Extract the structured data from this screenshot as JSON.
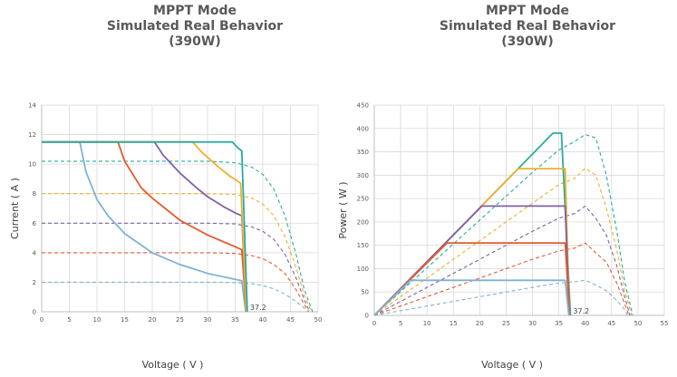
{
  "chart_data": [
    {
      "type": "line",
      "title": [
        "MPPT Mode",
        "Simulated Real Behavior",
        "(390W)"
      ],
      "xlabel": "Voltage ( V )",
      "ylabel": "Current ( A )",
      "xlim": [
        0,
        50
      ],
      "ylim": [
        0,
        14
      ],
      "xticks": [
        "0",
        "5",
        "10",
        "15",
        "20",
        "25",
        "30",
        "35",
        "40",
        "45",
        "50"
      ],
      "yticks": [
        "0",
        "2",
        "4",
        "6",
        "8",
        "10",
        "12",
        "14"
      ],
      "annotation": {
        "text": "37.2",
        "x": 37.2,
        "y": 0
      },
      "grid": true,
      "series": [
        {
          "style": "solid",
          "color": "#7fb2d3",
          "points": [
            [
              0,
              11.5
            ],
            [
              6.9,
              11.5
            ],
            [
              8,
              9.5
            ],
            [
              10,
              7.6
            ],
            [
              12,
              6.5
            ],
            [
              15,
              5.3
            ],
            [
              20,
              4.0
            ],
            [
              25,
              3.2
            ],
            [
              30,
              2.6
            ],
            [
              35,
              2.2
            ],
            [
              36.2,
              2.1
            ],
            [
              36.9,
              0
            ]
          ]
        },
        {
          "style": "solid",
          "color": "#e35b2f",
          "points": [
            [
              0,
              11.5
            ],
            [
              13.8,
              11.5
            ],
            [
              15,
              10.2
            ],
            [
              18,
              8.4
            ],
            [
              20,
              7.7
            ],
            [
              25,
              6.2
            ],
            [
              30,
              5.2
            ],
            [
              35,
              4.4
            ],
            [
              36.2,
              4.2
            ],
            [
              37,
              0
            ]
          ]
        },
        {
          "style": "solid",
          "color": "#8060a8",
          "points": [
            [
              0,
              11.5
            ],
            [
              20.4,
              11.5
            ],
            [
              22,
              10.6
            ],
            [
              25,
              9.4
            ],
            [
              28,
              8.4
            ],
            [
              30,
              7.8
            ],
            [
              33,
              7.1
            ],
            [
              35,
              6.7
            ],
            [
              36.2,
              6.5
            ],
            [
              37,
              0
            ]
          ]
        },
        {
          "style": "solid",
          "color": "#efb02c",
          "points": [
            [
              0,
              11.5
            ],
            [
              27.3,
              11.5
            ],
            [
              29,
              10.8
            ],
            [
              32,
              9.8
            ],
            [
              34,
              9.2
            ],
            [
              36,
              8.7
            ],
            [
              37,
              0
            ]
          ]
        },
        {
          "style": "solid",
          "color": "#2aab9e",
          "points": [
            [
              0,
              11.5
            ],
            [
              34.5,
              11.5
            ],
            [
              35.5,
              11.1
            ],
            [
              36.2,
              10.9
            ],
            [
              37.2,
              0
            ]
          ]
        },
        {
          "style": "dashed",
          "color": "#7fb2d3",
          "points": [
            [
              0,
              2
            ],
            [
              30,
              2
            ],
            [
              35,
              1.98
            ],
            [
              38,
              1.9
            ],
            [
              40,
              1.78
            ],
            [
              42,
              1.55
            ],
            [
              44,
              1.2
            ],
            [
              46,
              0.7
            ],
            [
              47.5,
              0.25
            ],
            [
              48,
              0
            ]
          ]
        },
        {
          "style": "dashed",
          "color": "#e35b2f",
          "points": [
            [
              0,
              4
            ],
            [
              30,
              4
            ],
            [
              35,
              3.95
            ],
            [
              38,
              3.8
            ],
            [
              40,
              3.6
            ],
            [
              42,
              3.2
            ],
            [
              44,
              2.6
            ],
            [
              46,
              1.5
            ],
            [
              47.5,
              0.5
            ],
            [
              48.3,
              0
            ]
          ]
        },
        {
          "style": "dashed",
          "color": "#8060a8",
          "points": [
            [
              0,
              6
            ],
            [
              30,
              6
            ],
            [
              35,
              5.95
            ],
            [
              38,
              5.75
            ],
            [
              40,
              5.45
            ],
            [
              42,
              4.9
            ],
            [
              44,
              3.9
            ],
            [
              46,
              2.3
            ],
            [
              47.5,
              0.8
            ],
            [
              48.5,
              0
            ]
          ]
        },
        {
          "style": "dashed",
          "color": "#efb02c",
          "points": [
            [
              0,
              8
            ],
            [
              30,
              8
            ],
            [
              35,
              7.95
            ],
            [
              38,
              7.7
            ],
            [
              40,
              7.3
            ],
            [
              42,
              6.5
            ],
            [
              44,
              5.1
            ],
            [
              46,
              3.0
            ],
            [
              47.5,
              1.1
            ],
            [
              48.8,
              0
            ]
          ]
        },
        {
          "style": "dashed",
          "color": "#2aab9e",
          "points": [
            [
              0,
              10.2
            ],
            [
              30,
              10.2
            ],
            [
              35,
              10.1
            ],
            [
              38,
              9.8
            ],
            [
              40,
              9.3
            ],
            [
              42,
              8.3
            ],
            [
              44,
              6.5
            ],
            [
              46,
              3.9
            ],
            [
              47.5,
              1.5
            ],
            [
              49,
              0
            ]
          ]
        }
      ]
    },
    {
      "type": "line",
      "title": [
        "MPPT Mode",
        "Simulated Real Behavior",
        "(390W)"
      ],
      "xlabel": "Voltage ( V )",
      "ylabel": "Power ( W )",
      "xlim": [
        0,
        55
      ],
      "ylim": [
        0,
        450
      ],
      "xticks": [
        "0",
        "5",
        "10",
        "15",
        "20",
        "25",
        "30",
        "35",
        "40",
        "45",
        "50",
        "55"
      ],
      "yticks": [
        "0",
        "50",
        "100",
        "150",
        "200",
        "250",
        "300",
        "350",
        "400",
        "450"
      ],
      "annotation": {
        "text": "37.2",
        "x": 37.2,
        "y": 0
      },
      "grid": true,
      "series": [
        {
          "style": "solid",
          "color": "#2aab9e",
          "points": [
            [
              0,
              0
            ],
            [
              33.9,
              390
            ],
            [
              35.5,
              390
            ],
            [
              37.2,
              0
            ]
          ]
        },
        {
          "style": "solid",
          "color": "#efb02c",
          "points": [
            [
              0,
              0
            ],
            [
              27.3,
              314
            ],
            [
              36.2,
              314
            ],
            [
              37,
              0
            ]
          ]
        },
        {
          "style": "solid",
          "color": "#8060a8",
          "points": [
            [
              0,
              0
            ],
            [
              20.4,
              234
            ],
            [
              36.2,
              234
            ],
            [
              37,
              0
            ]
          ]
        },
        {
          "style": "solid",
          "color": "#e35b2f",
          "points": [
            [
              0,
              0
            ],
            [
              13.8,
              155
            ],
            [
              36.2,
              155
            ],
            [
              37,
              0
            ]
          ]
        },
        {
          "style": "solid",
          "color": "#7fb2d3",
          "points": [
            [
              0,
              0
            ],
            [
              6.9,
              75
            ],
            [
              36.2,
              75
            ],
            [
              36.9,
              0
            ]
          ]
        },
        {
          "style": "dashed",
          "color": "#2aab9e",
          "points": [
            [
              0,
              0
            ],
            [
              10,
              102
            ],
            [
              20,
              204
            ],
            [
              30,
              306
            ],
            [
              35,
              354
            ],
            [
              38,
              372
            ],
            [
              40,
              387
            ],
            [
              42,
              380
            ],
            [
              44,
              300
            ],
            [
              46,
              180
            ],
            [
              47.5,
              71
            ],
            [
              49,
              0
            ]
          ]
        },
        {
          "style": "dashed",
          "color": "#efb02c",
          "points": [
            [
              0,
              0
            ],
            [
              10,
              80
            ],
            [
              20,
              160
            ],
            [
              30,
              240
            ],
            [
              35,
              280
            ],
            [
              38,
              293
            ],
            [
              40,
              315
            ],
            [
              42,
              300
            ],
            [
              44,
              230
            ],
            [
              46,
              140
            ],
            [
              47.5,
              52
            ],
            [
              48.8,
              0
            ]
          ]
        },
        {
          "style": "dashed",
          "color": "#8060a8",
          "points": [
            [
              0,
              0
            ],
            [
              10,
              60
            ],
            [
              20,
              120
            ],
            [
              30,
              180
            ],
            [
              35,
              208
            ],
            [
              38,
              218
            ],
            [
              40,
              234
            ],
            [
              42,
              208
            ],
            [
              44,
              172
            ],
            [
              46,
              106
            ],
            [
              47.5,
              38
            ],
            [
              48.5,
              0
            ]
          ]
        },
        {
          "style": "dashed",
          "color": "#e35b2f",
          "points": [
            [
              0,
              0
            ],
            [
              10,
              40
            ],
            [
              20,
              80
            ],
            [
              30,
              120
            ],
            [
              35,
              138
            ],
            [
              38,
              144
            ],
            [
              40,
              155
            ],
            [
              42,
              134
            ],
            [
              44,
              114
            ],
            [
              46,
              69
            ],
            [
              47.5,
              24
            ],
            [
              48.3,
              0
            ]
          ]
        },
        {
          "style": "dashed",
          "color": "#7fb2d3",
          "points": [
            [
              0,
              0
            ],
            [
              10,
              20
            ],
            [
              20,
              40
            ],
            [
              30,
              60
            ],
            [
              35,
              69
            ],
            [
              38,
              72
            ],
            [
              40,
              75
            ],
            [
              42,
              65
            ],
            [
              44,
              53
            ],
            [
              46,
              32
            ],
            [
              47.5,
              12
            ],
            [
              48,
              0
            ]
          ]
        }
      ]
    }
  ]
}
